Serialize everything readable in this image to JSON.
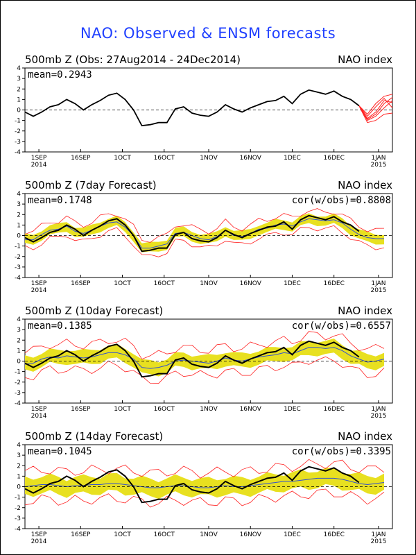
{
  "title": "NAO: Observed & ENSM forecasts",
  "colors": {
    "title": "#2040ff",
    "observed": "#000000",
    "members": "#ff2020",
    "spread": "#e8e020",
    "mean_line": "#3050d0"
  },
  "x_ticks": [
    {
      "label": "1SEP",
      "sub": "2014",
      "day": 5
    },
    {
      "label": "16SEP",
      "sub": "",
      "day": 20
    },
    {
      "label": "1OCT",
      "sub": "",
      "day": 35
    },
    {
      "label": "16OCT",
      "sub": "",
      "day": 50
    },
    {
      "label": "1NOV",
      "sub": "",
      "day": 66
    },
    {
      "label": "16NOV",
      "sub": "",
      "day": 81
    },
    {
      "label": "1DEC",
      "sub": "",
      "day": 96
    },
    {
      "label": "16DEC",
      "sub": "",
      "day": 111
    },
    {
      "label": "1JAN",
      "sub": "2015",
      "day": 127
    }
  ],
  "y_ticks": [
    -4,
    -3,
    -2,
    -1,
    0,
    1,
    2,
    3,
    4
  ],
  "panels": [
    {
      "title": "500mb Z (Obs: 27Aug2014 - 24Dec2014)",
      "index_label": "NAO index",
      "mean_label": "mean=0.2943",
      "cor_label": ""
    },
    {
      "title": "500mb Z (7day Forecast)",
      "index_label": "NAO index",
      "mean_label": "mean=0.1748",
      "cor_label": "cor(w/obs)=0.8808"
    },
    {
      "title": "500mb Z (10day Forecast)",
      "index_label": "NAO index",
      "mean_label": "mean=0.1385",
      "cor_label": "cor(w/obs)=0.6557"
    },
    {
      "title": "500mb Z (14day Forecast)",
      "index_label": "NAO index",
      "mean_label": "mean=0.1045",
      "cor_label": "cor(w/obs)=0.3395"
    }
  ],
  "chart_data": {
    "type": "line",
    "title": "NAO: Observed & ENSM forecasts",
    "x_range_days_since_27Aug2014": [
      0,
      132
    ],
    "ylim": [
      -4,
      4
    ],
    "observed": {
      "x": [
        0,
        3,
        6,
        9,
        12,
        15,
        18,
        21,
        24,
        27,
        30,
        33,
        36,
        39,
        42,
        45,
        48,
        51,
        54,
        57,
        60,
        63,
        66,
        69,
        72,
        75,
        78,
        81,
        84,
        87,
        90,
        93,
        96,
        99,
        102,
        105,
        108,
        111,
        114,
        117,
        120
      ],
      "y": [
        -0.2,
        -0.6,
        -0.2,
        0.3,
        0.5,
        1.0,
        0.6,
        0.0,
        0.5,
        0.9,
        1.4,
        1.6,
        1.0,
        0.0,
        -1.5,
        -1.4,
        -1.2,
        -1.2,
        0.1,
        0.3,
        -0.3,
        -0.5,
        -0.6,
        -0.2,
        0.5,
        0.1,
        -0.2,
        0.2,
        0.5,
        0.8,
        0.9,
        1.3,
        0.6,
        1.5,
        1.9,
        1.7,
        1.5,
        1.8,
        1.3,
        1.0,
        0.4
      ]
    },
    "forecast_members_obs_panel": [
      {
        "x": [
          120,
          123,
          126,
          129,
          132
        ],
        "y": [
          0.4,
          -0.4,
          0.6,
          1.3,
          1.5
        ]
      },
      {
        "x": [
          120,
          123,
          126,
          129,
          132
        ],
        "y": [
          0.4,
          -0.8,
          -0.2,
          0.9,
          0.7
        ]
      },
      {
        "x": [
          120,
          123,
          126,
          129,
          132
        ],
        "y": [
          0.4,
          -1.0,
          -0.6,
          0.2,
          0.9
        ]
      },
      {
        "x": [
          120,
          123,
          126,
          129,
          132
        ],
        "y": [
          0.4,
          -0.6,
          0.3,
          1.1,
          0.2
        ]
      },
      {
        "x": [
          120,
          123,
          126,
          129,
          132
        ],
        "y": [
          0.4,
          -1.2,
          -1.0,
          -0.4,
          -0.3
        ]
      },
      {
        "x": [
          120,
          123,
          126,
          129,
          132
        ],
        "y": [
          0.4,
          -0.9,
          -0.4,
          0.6,
          1.2
        ]
      }
    ],
    "forecast_mean": {
      "7day": {
        "x": [
          0,
          3,
          6,
          9,
          12,
          15,
          18,
          21,
          24,
          27,
          30,
          33,
          36,
          39,
          42,
          45,
          48,
          51,
          54,
          57,
          60,
          63,
          66,
          69,
          72,
          75,
          78,
          81,
          84,
          87,
          90,
          93,
          96,
          99,
          102,
          105,
          108,
          111,
          114,
          117,
          120,
          123,
          126,
          129
        ],
        "y": [
          -0.4,
          -0.4,
          0.1,
          0.5,
          0.6,
          0.9,
          0.4,
          0.2,
          0.5,
          0.9,
          1.2,
          1.3,
          0.8,
          0.0,
          -1.2,
          -1.2,
          -1.0,
          -0.8,
          0.2,
          0.3,
          0.0,
          -0.3,
          -0.4,
          -0.1,
          0.5,
          0.0,
          -0.1,
          0.2,
          0.6,
          0.7,
          1.0,
          1.1,
          0.9,
          1.3,
          1.6,
          1.5,
          1.4,
          1.5,
          1.2,
          0.6,
          0.1,
          -0.2,
          -0.3,
          -0.3
        ]
      },
      "10day": {
        "x": [
          0,
          3,
          6,
          9,
          12,
          15,
          18,
          21,
          24,
          27,
          30,
          33,
          36,
          39,
          42,
          45,
          48,
          51,
          54,
          57,
          60,
          63,
          66,
          69,
          72,
          75,
          78,
          81,
          84,
          87,
          90,
          93,
          96,
          99,
          102,
          105,
          108,
          111,
          114,
          117,
          120,
          123,
          126,
          129
        ],
        "y": [
          -0.3,
          -0.2,
          0.2,
          0.4,
          0.3,
          0.5,
          0.4,
          0.3,
          0.4,
          0.6,
          0.8,
          0.8,
          0.6,
          0.2,
          -0.6,
          -0.7,
          -0.6,
          -0.4,
          0.0,
          0.1,
          0.0,
          -0.1,
          -0.2,
          0.0,
          0.3,
          0.1,
          0.0,
          0.2,
          0.4,
          0.5,
          0.6,
          0.8,
          0.7,
          1.0,
          1.3,
          1.3,
          1.2,
          1.3,
          1.0,
          0.5,
          0.2,
          -0.1,
          0.0,
          0.2
        ]
      },
      "14day": {
        "x": [
          0,
          3,
          6,
          9,
          12,
          15,
          18,
          21,
          24,
          27,
          30,
          33,
          36,
          39,
          42,
          45,
          48,
          51,
          54,
          57,
          60,
          63,
          66,
          69,
          72,
          75,
          78,
          81,
          84,
          87,
          90,
          93,
          96,
          99,
          102,
          105,
          108,
          111,
          114,
          117,
          120,
          123,
          126,
          129
        ],
        "y": [
          0.0,
          0.1,
          0.2,
          0.2,
          0.1,
          0.0,
          0.1,
          0.1,
          0.2,
          0.2,
          0.3,
          0.3,
          0.2,
          0.1,
          0.0,
          -0.1,
          -0.1,
          0.0,
          0.1,
          0.1,
          0.0,
          -0.1,
          -0.1,
          0.0,
          0.1,
          0.0,
          0.0,
          0.1,
          0.2,
          0.3,
          0.4,
          0.5,
          0.5,
          0.6,
          0.7,
          0.8,
          0.8,
          0.8,
          0.7,
          0.5,
          0.3,
          0.2,
          0.3,
          0.4
        ]
      }
    },
    "spread_half_width": {
      "7day": 0.45,
      "10day": 0.65,
      "14day": 0.8
    },
    "member_envelope_half_width": {
      "7day": 0.8,
      "10day": 1.2,
      "14day": 1.4
    }
  }
}
